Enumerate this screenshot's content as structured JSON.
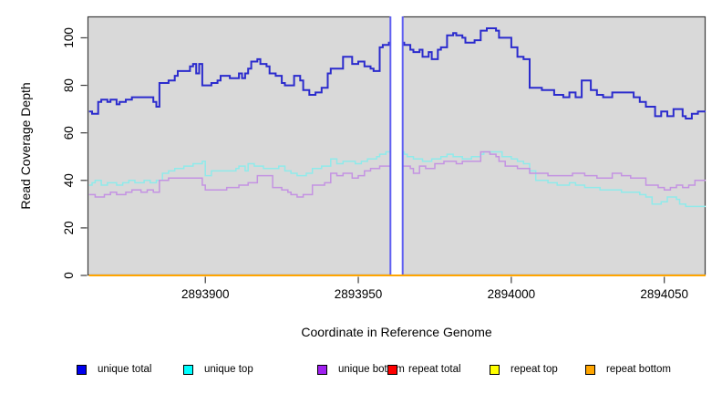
{
  "chart_data": {
    "type": "line",
    "subtype": "step-coverage-plot",
    "title": "",
    "xlabel": "Coordinate in Reference Genome",
    "ylabel": "Read Coverage Depth",
    "xlim": [
      2893861.5,
      2894063.5
    ],
    "ylim": [
      0,
      109
    ],
    "grid": false,
    "legend_position": "bottom",
    "plot_bg_color": "#d9d9d9",
    "page_bg_color": "#ffffff",
    "box_color": "#3c3c3c",
    "xtick_values": [
      2893900,
      2893950,
      2894000,
      2894050
    ],
    "xtick_labels": [
      "2893900",
      "2893950",
      "2894000",
      "2894050"
    ],
    "ytick_values": [
      0,
      20,
      40,
      60,
      80,
      100
    ],
    "ytick_labels": [
      "0",
      "20",
      "40",
      "60",
      "80",
      "100"
    ],
    "highlight_band": {
      "x_start": 2893960.5,
      "x_end": 2893964.5,
      "fill": "#ffffff",
      "edge_color": "#5f5ff2"
    },
    "series": [
      {
        "name": "unique total",
        "color": "#2b2bcd",
        "legend_color": "#0000ee",
        "line_width": 2,
        "step_points": [
          [
            2893862,
            69
          ],
          [
            2893863,
            68
          ],
          [
            2893865,
            73
          ],
          [
            2893866,
            74
          ],
          [
            2893868,
            73
          ],
          [
            2893869,
            74
          ],
          [
            2893871,
            72
          ],
          [
            2893872,
            73
          ],
          [
            2893874,
            74
          ],
          [
            2893876,
            75
          ],
          [
            2893883,
            73
          ],
          [
            2893884,
            71
          ],
          [
            2893885,
            81
          ],
          [
            2893888,
            82
          ],
          [
            2893890,
            84
          ],
          [
            2893891,
            86
          ],
          [
            2893895,
            88
          ],
          [
            2893896,
            89
          ],
          [
            2893897,
            85
          ],
          [
            2893898,
            89
          ],
          [
            2893899,
            80
          ],
          [
            2893902,
            81
          ],
          [
            2893904,
            82
          ],
          [
            2893905,
            84
          ],
          [
            2893908,
            83
          ],
          [
            2893911,
            85
          ],
          [
            2893912,
            83
          ],
          [
            2893913,
            85
          ],
          [
            2893914,
            87
          ],
          [
            2893915,
            90
          ],
          [
            2893917,
            91
          ],
          [
            2893918,
            89
          ],
          [
            2893920,
            88
          ],
          [
            2893921,
            85
          ],
          [
            2893923,
            84
          ],
          [
            2893925,
            81
          ],
          [
            2893926,
            80
          ],
          [
            2893929,
            84
          ],
          [
            2893931,
            82
          ],
          [
            2893932,
            78
          ],
          [
            2893934,
            76
          ],
          [
            2893936,
            77
          ],
          [
            2893938,
            79
          ],
          [
            2893940,
            85
          ],
          [
            2893941,
            87
          ],
          [
            2893945,
            92
          ],
          [
            2893948,
            89
          ],
          [
            2893950,
            90
          ],
          [
            2893952,
            88
          ],
          [
            2893954,
            87
          ],
          [
            2893955,
            86
          ],
          [
            2893957,
            96
          ],
          [
            2893958,
            97
          ],
          [
            2893960,
            98
          ],
          [
            2893965,
            97
          ],
          [
            2893967,
            95
          ],
          [
            2893968,
            94
          ],
          [
            2893970,
            95
          ],
          [
            2893971,
            92
          ],
          [
            2893973,
            94
          ],
          [
            2893974,
            91
          ],
          [
            2893976,
            95
          ],
          [
            2893977,
            96
          ],
          [
            2893979,
            101
          ],
          [
            2893981,
            102
          ],
          [
            2893982,
            101
          ],
          [
            2893984,
            100
          ],
          [
            2893985,
            98
          ],
          [
            2893988,
            99
          ],
          [
            2893990,
            103
          ],
          [
            2893992,
            104
          ],
          [
            2893995,
            103
          ],
          [
            2893996,
            100
          ],
          [
            2894000,
            96
          ],
          [
            2894002,
            92
          ],
          [
            2894004,
            91
          ],
          [
            2894006,
            79
          ],
          [
            2894010,
            78
          ],
          [
            2894014,
            76
          ],
          [
            2894017,
            75
          ],
          [
            2894019,
            77
          ],
          [
            2894021,
            75
          ],
          [
            2894023,
            82
          ],
          [
            2894026,
            78
          ],
          [
            2894028,
            76
          ],
          [
            2894030,
            75
          ],
          [
            2894033,
            77
          ],
          [
            2894040,
            75
          ],
          [
            2894042,
            73
          ],
          [
            2894044,
            71
          ],
          [
            2894047,
            67
          ],
          [
            2894049,
            69
          ],
          [
            2894051,
            67
          ],
          [
            2894053,
            70
          ],
          [
            2894056,
            67
          ],
          [
            2894057,
            66
          ],
          [
            2894059,
            68
          ],
          [
            2894061,
            69
          ]
        ]
      },
      {
        "name": "unique top",
        "color": "#8feaea",
        "legend_color": "#00ffff",
        "line_width": 1.5,
        "step_points": [
          [
            2893862,
            38
          ],
          [
            2893863,
            39
          ],
          [
            2893864,
            40
          ],
          [
            2893866,
            38
          ],
          [
            2893868,
            39
          ],
          [
            2893871,
            38
          ],
          [
            2893873,
            39
          ],
          [
            2893875,
            40
          ],
          [
            2893877,
            39
          ],
          [
            2893880,
            40
          ],
          [
            2893882,
            39
          ],
          [
            2893884,
            40
          ],
          [
            2893886,
            43
          ],
          [
            2893888,
            44
          ],
          [
            2893890,
            45
          ],
          [
            2893893,
            46
          ],
          [
            2893896,
            47
          ],
          [
            2893899,
            48
          ],
          [
            2893900,
            42
          ],
          [
            2893902,
            44
          ],
          [
            2893910,
            45
          ],
          [
            2893911,
            46
          ],
          [
            2893913,
            44
          ],
          [
            2893914,
            47
          ],
          [
            2893916,
            46
          ],
          [
            2893919,
            45
          ],
          [
            2893924,
            46
          ],
          [
            2893926,
            44
          ],
          [
            2893928,
            43
          ],
          [
            2893930,
            42
          ],
          [
            2893933,
            43
          ],
          [
            2893935,
            45
          ],
          [
            2893938,
            46
          ],
          [
            2893941,
            49
          ],
          [
            2893943,
            47
          ],
          [
            2893945,
            48
          ],
          [
            2893949,
            47
          ],
          [
            2893951,
            48
          ],
          [
            2893953,
            49
          ],
          [
            2893956,
            50
          ],
          [
            2893957,
            51
          ],
          [
            2893959,
            52
          ],
          [
            2893965,
            51
          ],
          [
            2893966,
            50
          ],
          [
            2893968,
            49
          ],
          [
            2893971,
            48
          ],
          [
            2893974,
            49
          ],
          [
            2893977,
            50
          ],
          [
            2893979,
            51
          ],
          [
            2893981,
            50
          ],
          [
            2893984,
            49
          ],
          [
            2893987,
            50
          ],
          [
            2893990,
            51
          ],
          [
            2893991,
            52
          ],
          [
            2893995,
            52
          ],
          [
            2893997,
            50
          ],
          [
            2894000,
            49
          ],
          [
            2894002,
            48
          ],
          [
            2894004,
            47
          ],
          [
            2894006,
            44
          ],
          [
            2894008,
            40
          ],
          [
            2894012,
            39
          ],
          [
            2894015,
            38
          ],
          [
            2894019,
            39
          ],
          [
            2894021,
            38
          ],
          [
            2894024,
            37
          ],
          [
            2894029,
            36
          ],
          [
            2894033,
            36
          ],
          [
            2894036,
            35
          ],
          [
            2894040,
            35
          ],
          [
            2894042,
            34
          ],
          [
            2894044,
            33
          ],
          [
            2894046,
            30
          ],
          [
            2894049,
            31
          ],
          [
            2894051,
            33
          ],
          [
            2894054,
            32
          ],
          [
            2894055,
            30
          ],
          [
            2894057,
            29
          ],
          [
            2894060,
            29
          ]
        ]
      },
      {
        "name": "unique bottom",
        "color": "#c493e2",
        "legend_color": "#a020f0",
        "line_width": 1.5,
        "step_points": [
          [
            2893862,
            34
          ],
          [
            2893864,
            33
          ],
          [
            2893867,
            34
          ],
          [
            2893869,
            35
          ],
          [
            2893871,
            34
          ],
          [
            2893874,
            35
          ],
          [
            2893876,
            36
          ],
          [
            2893879,
            35
          ],
          [
            2893881,
            36
          ],
          [
            2893883,
            35
          ],
          [
            2893885,
            40
          ],
          [
            2893888,
            41
          ],
          [
            2893898,
            41
          ],
          [
            2893899,
            38
          ],
          [
            2893900,
            36
          ],
          [
            2893907,
            37
          ],
          [
            2893911,
            38
          ],
          [
            2893914,
            39
          ],
          [
            2893917,
            42
          ],
          [
            2893922,
            37
          ],
          [
            2893925,
            36
          ],
          [
            2893927,
            35
          ],
          [
            2893928,
            34
          ],
          [
            2893930,
            33
          ],
          [
            2893932,
            34
          ],
          [
            2893935,
            38
          ],
          [
            2893939,
            39
          ],
          [
            2893941,
            43
          ],
          [
            2893943,
            42
          ],
          [
            2893945,
            43
          ],
          [
            2893948,
            41
          ],
          [
            2893950,
            42
          ],
          [
            2893952,
            44
          ],
          [
            2893954,
            45
          ],
          [
            2893957,
            46
          ],
          [
            2893965,
            46
          ],
          [
            2893967,
            45
          ],
          [
            2893968,
            43
          ],
          [
            2893970,
            46
          ],
          [
            2893972,
            45
          ],
          [
            2893975,
            47
          ],
          [
            2893978,
            48
          ],
          [
            2893982,
            47
          ],
          [
            2893984,
            48
          ],
          [
            2893988,
            48
          ],
          [
            2893990,
            52
          ],
          [
            2893993,
            51
          ],
          [
            2893995,
            50
          ],
          [
            2893996,
            48
          ],
          [
            2893998,
            46
          ],
          [
            2894002,
            45
          ],
          [
            2894006,
            43
          ],
          [
            2894012,
            42
          ],
          [
            2894020,
            43
          ],
          [
            2894024,
            42
          ],
          [
            2894028,
            41
          ],
          [
            2894033,
            43
          ],
          [
            2894036,
            42
          ],
          [
            2894039,
            41
          ],
          [
            2894044,
            38
          ],
          [
            2894048,
            37
          ],
          [
            2894050,
            36
          ],
          [
            2894052,
            37
          ],
          [
            2894054,
            38
          ],
          [
            2894056,
            37
          ],
          [
            2894058,
            38
          ],
          [
            2894060,
            40
          ]
        ]
      },
      {
        "name": "repeat total",
        "color": "#ff0000",
        "legend_color": "#ff0000",
        "line_width": 2,
        "step_points": [
          [
            2893862,
            0
          ]
        ]
      },
      {
        "name": "repeat top",
        "color": "#ffff00",
        "legend_color": "#ffff00",
        "line_width": 2,
        "step_points": [
          [
            2893862,
            0
          ]
        ]
      },
      {
        "name": "repeat bottom",
        "color": "#ffa500",
        "legend_color": "#ffa500",
        "line_width": 2,
        "step_points": [
          [
            2893862,
            0
          ]
        ]
      }
    ]
  }
}
